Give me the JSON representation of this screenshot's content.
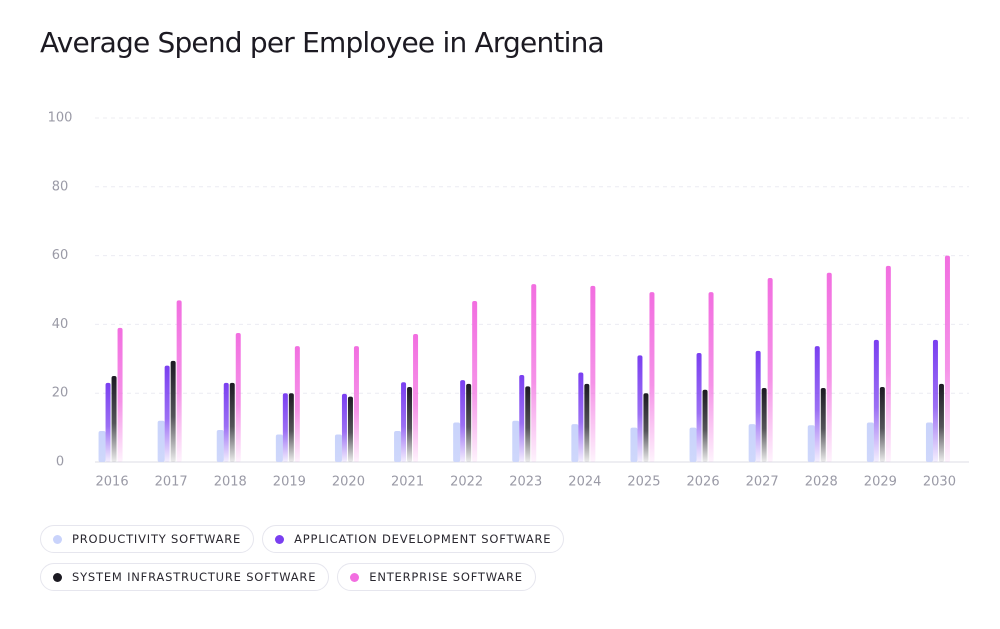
{
  "chart_data": {
    "type": "bar",
    "title": "Average Spend per Employee in Argentina",
    "categories": [
      "2016",
      "2017",
      "2018",
      "2019",
      "2020",
      "2021",
      "2022",
      "2023",
      "2024",
      "2025",
      "2026",
      "2027",
      "2028",
      "2029",
      "2030"
    ],
    "series": [
      {
        "name": "PRODUCTIVITY SOFTWARE",
        "color": "#c9d3fb",
        "values": [
          9,
          12,
          9.3,
          8,
          8,
          9,
          11.5,
          12,
          11,
          10,
          10,
          11,
          10.7,
          11.5,
          11.5
        ]
      },
      {
        "name": "APPLICATION DEVELOPMENT SOFTWARE",
        "color": "#7a3ff0",
        "values": [
          23,
          28,
          23,
          20,
          19.8,
          23.2,
          23.8,
          25.3,
          26,
          31,
          31.7,
          32.3,
          33.7,
          35.5,
          35.5
        ]
      },
      {
        "name": "SYSTEM INFRASTRUCTURE SOFTWARE",
        "color": "#1c1a22",
        "values": [
          25,
          29.4,
          23,
          20,
          19,
          21.8,
          22.7,
          22,
          22.7,
          20,
          21,
          21.5,
          21.5,
          21.8,
          22.7
        ]
      },
      {
        "name": "ENTERPRISE SOFTWARE",
        "color": "#f26ee0",
        "values": [
          39,
          47,
          37.5,
          33.7,
          33.7,
          37.2,
          46.8,
          51.7,
          51.2,
          49.4,
          49.4,
          53.5,
          55,
          57,
          60
        ]
      }
    ],
    "ylim": [
      0,
      100
    ],
    "yticks": [
      0,
      20,
      40,
      60,
      80,
      100
    ],
    "grid": true
  }
}
